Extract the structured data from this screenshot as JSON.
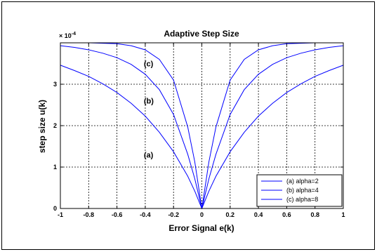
{
  "chart_data": {
    "type": "line",
    "title": "Adaptive Step Size",
    "xlabel": "Error Signal e(k)",
    "ylabel": "step size u(k)",
    "y_multiplier": "× 10",
    "y_multiplier_exp": "-4",
    "xlim": [
      -1,
      1
    ],
    "ylim": [
      0,
      4
    ],
    "grid": true,
    "legend_position": "bottom-right",
    "line_color": "#0000ff",
    "x_ticks": [
      "-1",
      "-0.8",
      "-0.6",
      "-0.4",
      "-0.2",
      "0",
      "0.2",
      "0.4",
      "0.6",
      "0.8",
      "1"
    ],
    "y_ticks": [
      "0",
      "1",
      "2",
      "3"
    ],
    "x": [
      -1.0,
      -0.9,
      -0.8,
      -0.7,
      -0.6,
      -0.5,
      -0.4,
      -0.3,
      -0.2,
      -0.1,
      -0.05,
      0,
      0.05,
      0.1,
      0.2,
      0.3,
      0.4,
      0.5,
      0.6,
      0.7,
      0.8,
      0.9,
      1.0
    ],
    "series": [
      {
        "name": "(a) alpha=2",
        "annotation": "(a)",
        "values": [
          3.46,
          3.33,
          3.19,
          3.01,
          2.8,
          2.54,
          2.23,
          1.84,
          1.37,
          0.78,
          0.42,
          0.0,
          0.42,
          0.78,
          1.37,
          1.84,
          2.23,
          2.54,
          2.8,
          3.01,
          3.19,
          3.33,
          3.46
        ]
      },
      {
        "name": "(b) alpha=4",
        "annotation": "(b)",
        "values": [
          3.93,
          3.89,
          3.83,
          3.75,
          3.64,
          3.48,
          3.24,
          2.87,
          2.27,
          1.31,
          0.72,
          0.0,
          0.72,
          1.31,
          2.27,
          2.87,
          3.24,
          3.48,
          3.64,
          3.75,
          3.83,
          3.89,
          3.93
        ]
      },
      {
        "name": "(c) alpha=8",
        "annotation": "(c)",
        "values": [
          4.0,
          4.0,
          4.0,
          3.99,
          3.98,
          3.93,
          3.83,
          3.6,
          3.1,
          1.97,
          1.13,
          0.0,
          1.13,
          1.97,
          3.1,
          3.6,
          3.83,
          3.93,
          3.98,
          3.99,
          4.0,
          4.0,
          4.0
        ]
      }
    ]
  }
}
